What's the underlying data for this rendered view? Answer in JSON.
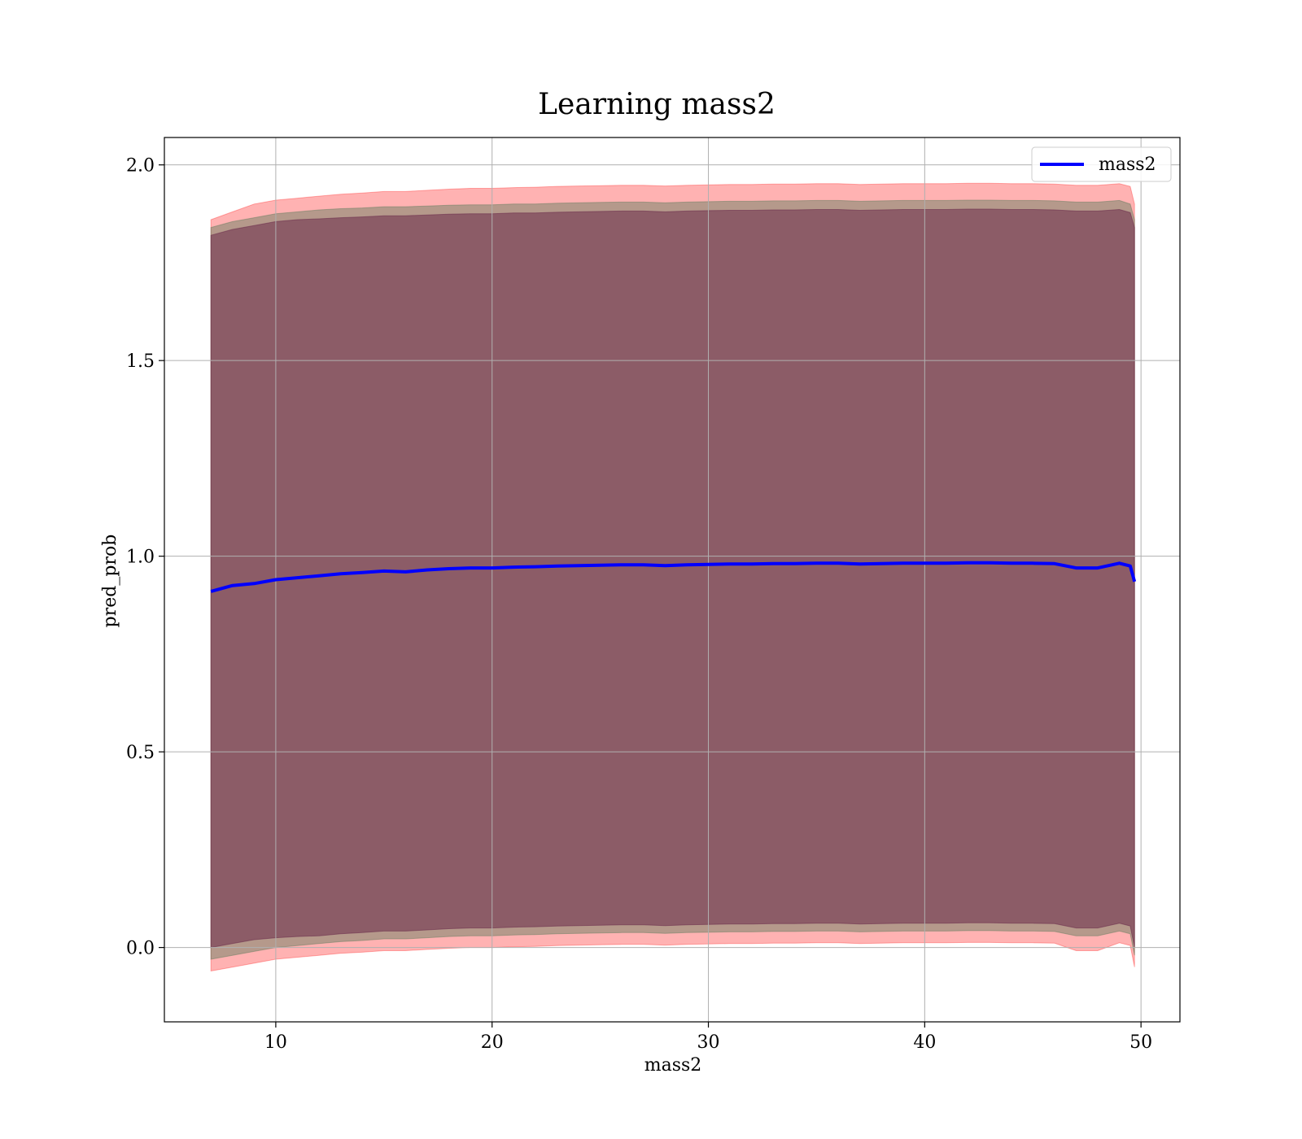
{
  "chart_data": {
    "type": "area",
    "title": "Learning mass2",
    "xlabel": "mass2",
    "ylabel": "pred_prob",
    "xlim": [
      4.85,
      51.8
    ],
    "ylim": [
      -0.19,
      2.07
    ],
    "xticks": [
      10,
      20,
      30,
      40,
      50
    ],
    "yticks": [
      0.0,
      0.5,
      1.0,
      1.5,
      2.0
    ],
    "xtick_labels": [
      "10",
      "20",
      "30",
      "40",
      "50"
    ],
    "ytick_labels": [
      "0.0",
      "0.5",
      "1.0",
      "1.5",
      "2.0"
    ],
    "grid": true,
    "legend_position": "top-right",
    "x": [
      7,
      8,
      9,
      10,
      11,
      12,
      13,
      14,
      15,
      16,
      17,
      18,
      19,
      20,
      21,
      22,
      23,
      24,
      25,
      26,
      27,
      28,
      29,
      30,
      31,
      32,
      33,
      34,
      35,
      36,
      37,
      38,
      39,
      40,
      41,
      42,
      43,
      44,
      45,
      46,
      47,
      48,
      49,
      49.5,
      49.7
    ],
    "series": [
      {
        "name": "mass2",
        "color": "#0000ff",
        "values": [
          0.91,
          0.925,
          0.93,
          0.94,
          0.945,
          0.95,
          0.955,
          0.958,
          0.962,
          0.96,
          0.965,
          0.968,
          0.97,
          0.97,
          0.972,
          0.973,
          0.975,
          0.976,
          0.977,
          0.978,
          0.978,
          0.976,
          0.978,
          0.979,
          0.98,
          0.98,
          0.981,
          0.981,
          0.982,
          0.982,
          0.98,
          0.981,
          0.982,
          0.982,
          0.982,
          0.983,
          0.983,
          0.982,
          0.982,
          0.981,
          0.97,
          0.97,
          0.982,
          0.975,
          0.935
        ]
      }
    ],
    "bands": [
      {
        "color": "#ff0000",
        "opacity": 0.3,
        "upper": [
          1.86,
          1.88,
          1.9,
          1.91,
          1.915,
          1.92,
          1.925,
          1.928,
          1.932,
          1.932,
          1.935,
          1.938,
          1.94,
          1.94,
          1.942,
          1.943,
          1.945,
          1.946,
          1.947,
          1.948,
          1.948,
          1.946,
          1.948,
          1.949,
          1.95,
          1.95,
          1.951,
          1.951,
          1.952,
          1.952,
          1.95,
          1.951,
          1.952,
          1.952,
          1.952,
          1.953,
          1.953,
          1.952,
          1.952,
          1.951,
          1.948,
          1.948,
          1.952,
          1.945,
          1.9
        ],
        "lower": [
          -0.06,
          -0.05,
          -0.04,
          -0.03,
          -0.025,
          -0.02,
          -0.015,
          -0.012,
          -0.008,
          -0.008,
          -0.005,
          -0.002,
          0.0,
          0.0,
          0.002,
          0.003,
          0.005,
          0.006,
          0.007,
          0.008,
          0.008,
          0.006,
          0.008,
          0.009,
          0.01,
          0.01,
          0.011,
          0.011,
          0.012,
          0.012,
          0.01,
          0.011,
          0.012,
          0.012,
          0.012,
          0.013,
          0.013,
          0.012,
          0.012,
          0.011,
          -0.008,
          -0.008,
          0.012,
          0.005,
          -0.05
        ]
      },
      {
        "color": "#5a7a5a",
        "opacity": 0.45,
        "upper": [
          1.84,
          1.855,
          1.865,
          1.875,
          1.88,
          1.885,
          1.888,
          1.89,
          1.893,
          1.893,
          1.895,
          1.897,
          1.898,
          1.898,
          1.9,
          1.9,
          1.902,
          1.903,
          1.904,
          1.905,
          1.905,
          1.903,
          1.905,
          1.906,
          1.907,
          1.907,
          1.908,
          1.908,
          1.909,
          1.909,
          1.907,
          1.908,
          1.909,
          1.909,
          1.909,
          1.91,
          1.91,
          1.909,
          1.909,
          1.908,
          1.905,
          1.905,
          1.909,
          1.9,
          1.86
        ],
        "lower": [
          -0.03,
          -0.02,
          -0.01,
          0.0,
          0.005,
          0.01,
          0.015,
          0.018,
          0.022,
          0.022,
          0.025,
          0.028,
          0.03,
          0.03,
          0.032,
          0.033,
          0.035,
          0.036,
          0.037,
          0.038,
          0.038,
          0.036,
          0.038,
          0.039,
          0.04,
          0.04,
          0.041,
          0.041,
          0.042,
          0.042,
          0.04,
          0.041,
          0.042,
          0.042,
          0.042,
          0.043,
          0.043,
          0.042,
          0.042,
          0.041,
          0.03,
          0.03,
          0.042,
          0.035,
          -0.02
        ]
      },
      {
        "color": "#6a2a4a",
        "opacity": 0.55,
        "upper": [
          1.82,
          1.835,
          1.845,
          1.855,
          1.86,
          1.862,
          1.865,
          1.867,
          1.87,
          1.87,
          1.872,
          1.874,
          1.875,
          1.875,
          1.877,
          1.877,
          1.879,
          1.88,
          1.881,
          1.882,
          1.882,
          1.88,
          1.882,
          1.883,
          1.884,
          1.884,
          1.885,
          1.885,
          1.886,
          1.886,
          1.884,
          1.885,
          1.886,
          1.886,
          1.886,
          1.887,
          1.887,
          1.886,
          1.886,
          1.885,
          1.882,
          1.882,
          1.886,
          1.878,
          1.84
        ],
        "lower": [
          0.0,
          0.01,
          0.02,
          0.025,
          0.028,
          0.03,
          0.035,
          0.038,
          0.042,
          0.042,
          0.045,
          0.048,
          0.05,
          0.05,
          0.052,
          0.053,
          0.055,
          0.056,
          0.057,
          0.058,
          0.058,
          0.056,
          0.058,
          0.059,
          0.06,
          0.06,
          0.061,
          0.061,
          0.062,
          0.062,
          0.06,
          0.061,
          0.062,
          0.062,
          0.062,
          0.063,
          0.063,
          0.062,
          0.062,
          0.061,
          0.05,
          0.05,
          0.062,
          0.055,
          0.0
        ]
      }
    ]
  }
}
